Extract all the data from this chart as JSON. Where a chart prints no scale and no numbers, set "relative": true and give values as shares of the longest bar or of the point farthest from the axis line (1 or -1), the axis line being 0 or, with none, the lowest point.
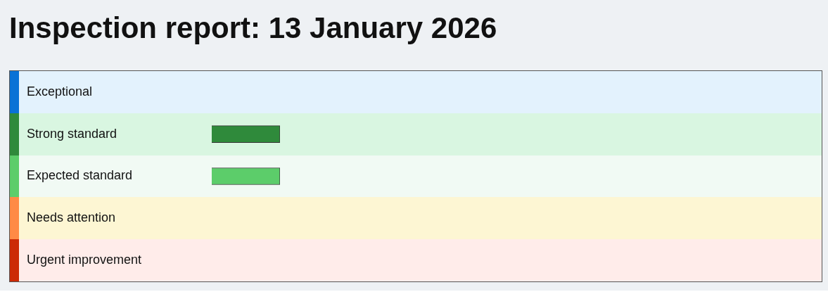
{
  "chart_data": {
    "type": "bar",
    "title": "Inspection report: 13 January 2026",
    "orientation": "horizontal",
    "relative": true,
    "categories": [
      "Exceptional",
      "Strong standard",
      "Expected standard",
      "Needs attention",
      "Urgent improvement"
    ],
    "values": [
      0,
      1,
      1,
      0,
      0
    ],
    "colors": [
      "#0a72d6",
      "#2f8a3b",
      "#5ccd6a",
      "#ff8a45",
      "#cc2a06"
    ],
    "legend": false
  }
}
